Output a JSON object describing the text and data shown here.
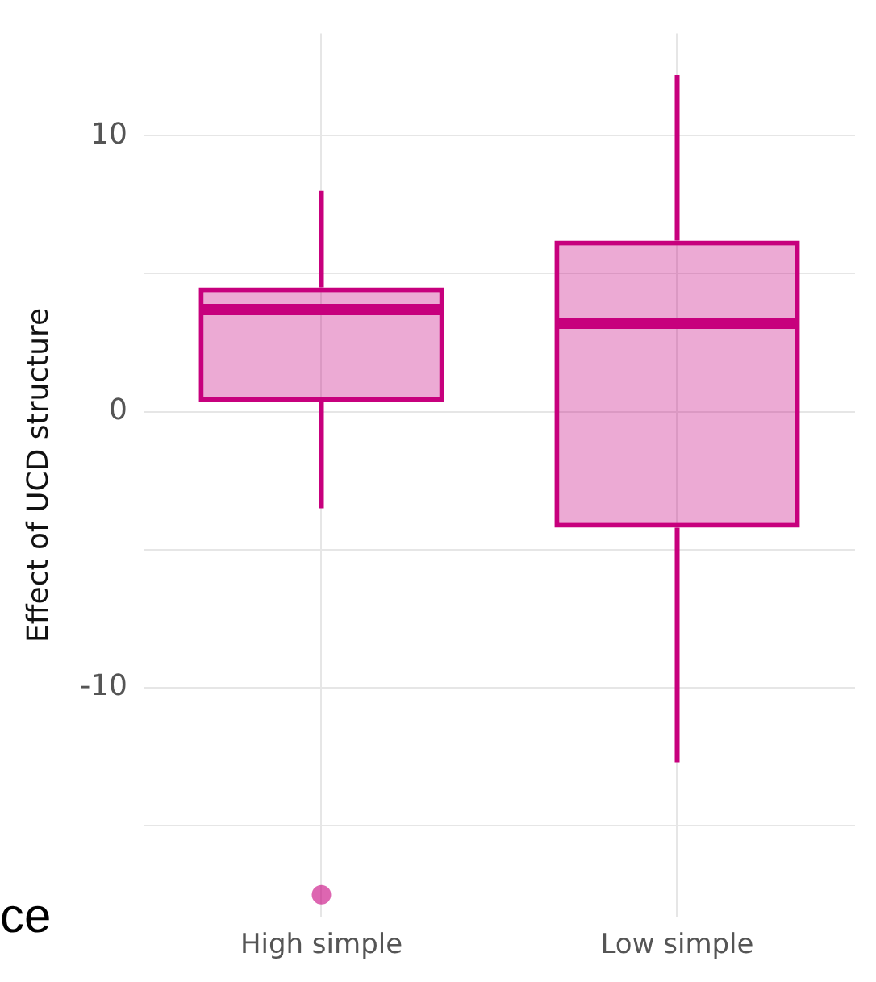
{
  "chart_data": {
    "type": "box",
    "ylabel": "Effect of UCD structure",
    "categories": [
      "High simple",
      "Low simple"
    ],
    "boxes": [
      {
        "low": -3.5,
        "q1": 0.35,
        "median": 3.7,
        "q3": 4.5,
        "high": 8,
        "outliers": [
          -17.5
        ]
      },
      {
        "low": -12.7,
        "q1": -4.2,
        "median": 3.2,
        "q3": 6.2,
        "high": 12.2
      }
    ],
    "color": "#c7007d",
    "ylim": [
      -18.3,
      13.7
    ],
    "yticks": [
      {
        "value": -15,
        "label": null
      },
      -10,
      {
        "value": -5,
        "label": null
      },
      0,
      {
        "value": 5,
        "label": null
      },
      10
    ],
    "grid": true,
    "annotations": [
      "ce"
    ]
  }
}
